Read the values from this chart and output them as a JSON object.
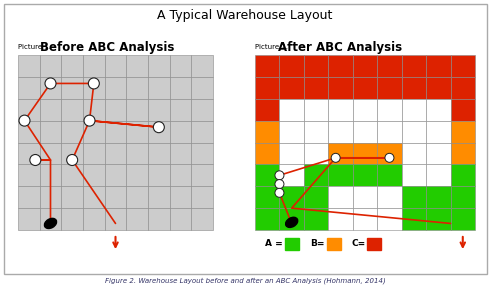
{
  "title": "A Typical Warehouse Layout",
  "caption": "Figure 2. Warehouse Layout before and after an ABC Analysis (Hohmann, 2014)",
  "left_label_small": "Picture 1.",
  "left_label_big": "Before ABC Analysis",
  "right_label_small": "Picture 2.",
  "right_label_big": "After ABC Analysis",
  "bg_color": "#ffffff",
  "grid_line_color": "#888888",
  "red_color": "#dd2200",
  "orange_color": "#ff8c00",
  "green_color": "#22cc00",
  "white_color": "#ffffff",
  "gray_color": "#cccccc",
  "legend_A": "A =",
  "legend_B": "B=",
  "legend_C": "C=",
  "cols": 9,
  "rows": 8
}
